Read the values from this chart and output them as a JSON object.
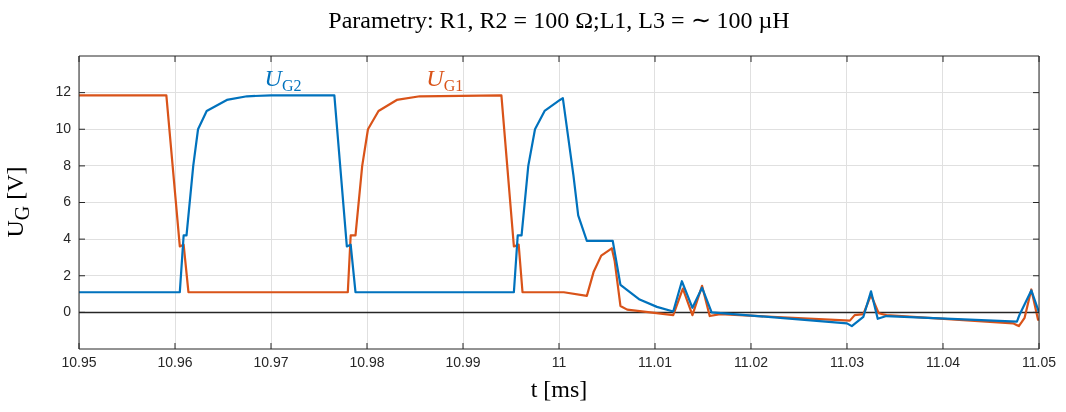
{
  "chart_data": {
    "type": "line",
    "title": "Parametry: R1, R2 = 100 Ω;L1, L3 = ∼ 100 µH",
    "xlabel": "t [ms]",
    "ylabel": "U$_{G}$ [V]",
    "xlim": [
      10.95,
      11.05
    ],
    "xticks": [
      {
        "value": 10.95,
        "label": "10.95"
      },
      {
        "value": 10.96,
        "label": "10.96"
      },
      {
        "value": 10.97,
        "label": "10.97"
      },
      {
        "value": 10.98,
        "label": "10.98"
      },
      {
        "value": 10.99,
        "label": "10.99"
      },
      {
        "value": 11,
        "label": "11"
      },
      {
        "value": 11.01,
        "label": "11.01"
      },
      {
        "value": 11.02,
        "label": "11.02"
      },
      {
        "value": 11.03,
        "label": "11.03"
      },
      {
        "value": 11.04,
        "label": "11.04"
      },
      {
        "value": 11.05,
        "label": "11.05"
      }
    ],
    "ylim": [
      -2,
      14
    ],
    "yticks": [
      0,
      2,
      4,
      6,
      8,
      10,
      12
    ],
    "grid": true,
    "legend": false,
    "marker": "none",
    "line_style": "solid",
    "ref_lines": [
      {
        "axis": "y",
        "value": 0,
        "color": "#262626"
      }
    ],
    "series": [
      {
        "name": "U$_{G2}$",
        "color": "#0072bd",
        "x": [
          10.95,
          10.9605,
          10.9609,
          10.9612,
          10.9619,
          10.9624,
          10.9633,
          10.9654,
          10.9675,
          10.97,
          10.9766,
          10.9779,
          10.9783,
          10.9788,
          10.9953,
          10.9957,
          10.9961,
          10.9968,
          10.9975,
          10.9985,
          11.0001,
          11.0004,
          11.0015,
          11.002,
          11.0029,
          11.0056,
          11.0064,
          11.0084,
          11.0102,
          11.0119,
          11.0128,
          11.0139,
          11.0149,
          11.0159,
          11.03,
          11.0305,
          11.0317,
          11.0325,
          11.0332,
          11.0341,
          11.0477,
          11.048,
          11.0492,
          11.05
        ],
        "values": [
          1.1,
          1.1,
          4.2,
          4.2,
          8,
          10,
          11,
          11.6,
          11.8,
          11.85,
          11.85,
          3.6,
          3.7,
          1.1,
          1.1,
          4.2,
          4.2,
          8,
          10,
          11,
          11.6,
          11.7,
          7.5,
          5.3,
          3.9,
          3.9,
          1.5,
          0.7,
          0.3,
          0.05,
          1.7,
          0.25,
          1.35,
          0,
          -0.6,
          -0.75,
          -0.25,
          1.15,
          -0.35,
          -0.2,
          -0.5,
          -0.1,
          1.2,
          0
        ]
      },
      {
        "name": "U$_{G1}$",
        "color": "#d95319",
        "x": [
          10.95,
          10.9591,
          10.9605,
          10.9609,
          10.9614,
          10.978,
          10.9783,
          10.9788,
          10.9795,
          10.9801,
          10.9812,
          10.9831,
          10.9855,
          10.994,
          10.9953,
          10.9958,
          10.9962,
          11.0005,
          11.0029,
          11.0036,
          11.0044,
          11.0055,
          11.0058,
          11.0064,
          11.0071,
          11.0119,
          11.0129,
          11.0139,
          11.0149,
          11.0157,
          11.0168,
          11.0303,
          11.0308,
          11.0317,
          11.0325,
          11.0333,
          11.0341,
          11.0473,
          11.0479,
          11.0485,
          11.0492,
          11.0499,
          11.05
        ],
        "values": [
          11.85,
          11.85,
          3.6,
          3.7,
          1.1,
          1.1,
          4.2,
          4.2,
          8,
          10,
          11,
          11.6,
          11.8,
          11.85,
          3.6,
          3.7,
          1.1,
          1.1,
          0.9,
          2.2,
          3.1,
          3.5,
          2.8,
          0.35,
          0.15,
          -0.15,
          1.3,
          -0.15,
          1.45,
          -0.2,
          -0.1,
          -0.45,
          -0.15,
          -0.1,
          0.95,
          -0.05,
          -0.15,
          -0.6,
          -0.75,
          -0.3,
          1.25,
          -0.4,
          -0.4
        ]
      }
    ]
  }
}
